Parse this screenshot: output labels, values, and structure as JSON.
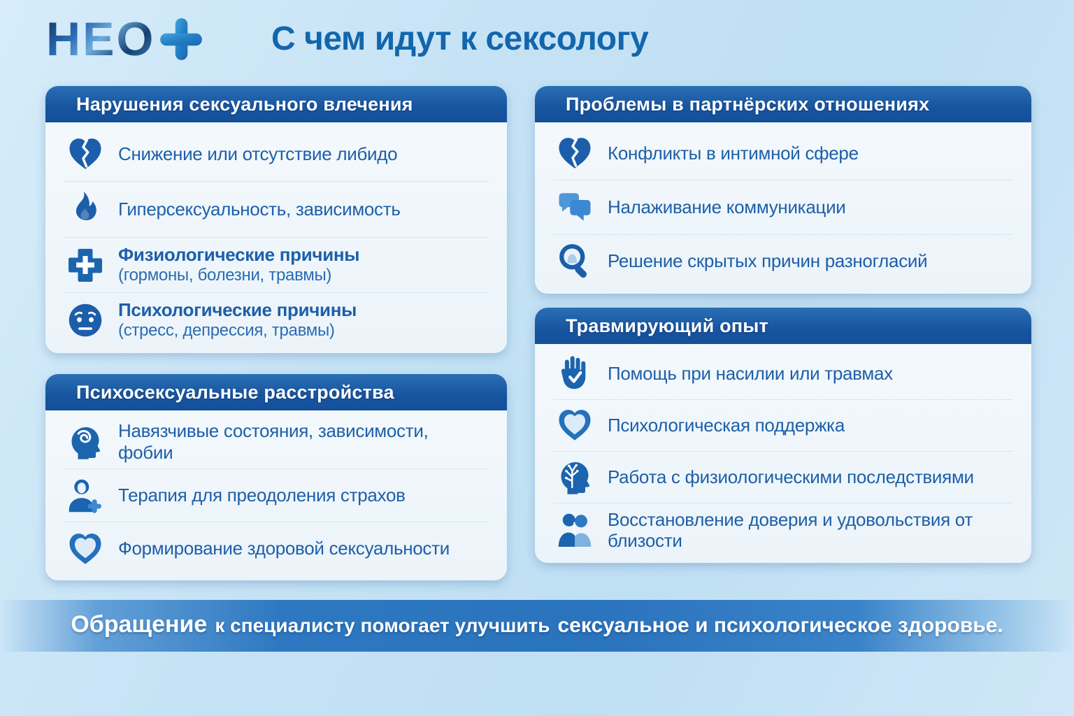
{
  "logo": {
    "text": "НЕО",
    "plus_icon": "plus-icon"
  },
  "title": "С чем идут к сексологу",
  "cards": [
    {
      "id": "desire",
      "title": "Нарушения сексуального влечения",
      "items": [
        {
          "icon": "broken-heart-icon",
          "text": "Снижение или отсутствие либидо"
        },
        {
          "icon": "flame-icon",
          "text": "Гиперсексуальность, зависимость"
        },
        {
          "icon": "medical-cross-icon",
          "text": "Физиологические причины",
          "bold": true,
          "subtext": "(гормоны, болезни, травмы)"
        },
        {
          "icon": "worried-face-icon",
          "text": "Психологические причины",
          "bold": true,
          "subtext": "(стресс, депрессия, травмы)"
        }
      ]
    },
    {
      "id": "partner",
      "title": "Проблемы в партнёрских отношениях",
      "items": [
        {
          "icon": "broken-heart-icon",
          "text": "Конфликты в интимной сфере"
        },
        {
          "icon": "chat-bubbles-icon",
          "text": "Налаживание коммуникации"
        },
        {
          "icon": "magnifier-head-icon",
          "text": "Решение скрытых причин разногласий"
        }
      ]
    },
    {
      "id": "psycho",
      "title": "Психосексуальные расстройства",
      "items": [
        {
          "icon": "head-spiral-icon",
          "text": "Навязчивые состояния, зависимости, фобии"
        },
        {
          "icon": "person-plus-icon",
          "text": "Терапия для преодоления страхов"
        },
        {
          "icon": "heart-in-heart-icon",
          "text": "Формирование здоровой сексуальности"
        }
      ]
    },
    {
      "id": "trauma",
      "title": "Травмирующий опыт",
      "items": [
        {
          "icon": "hand-check-icon",
          "text": "Помощь при насилии или травмах"
        },
        {
          "icon": "heart-in-heart-icon",
          "text": "Психологическая поддержка"
        },
        {
          "icon": "head-tree-icon",
          "text": "Работа с физиологическими последствиями"
        },
        {
          "icon": "embracing-couple-icon",
          "text": "Восстановление доверия и удовольствия от близости"
        }
      ]
    }
  ],
  "banner": {
    "lead": "Обращение",
    "middle": "к специалисту помогает улучшить",
    "emphasis": "сексуальное и психологическое здоровье."
  },
  "colors": {
    "background": "#c6e3f5",
    "card_header_blue": "#17549f",
    "card_body": "#f1f7fb",
    "title_text": "#1366ad",
    "item_text": "#1d5fa9",
    "icon_blue": "#1c64ae",
    "icon_light_blue": "#4e96d9",
    "banner_blue": "#2a73bd",
    "banner_text": "#ffffff"
  }
}
